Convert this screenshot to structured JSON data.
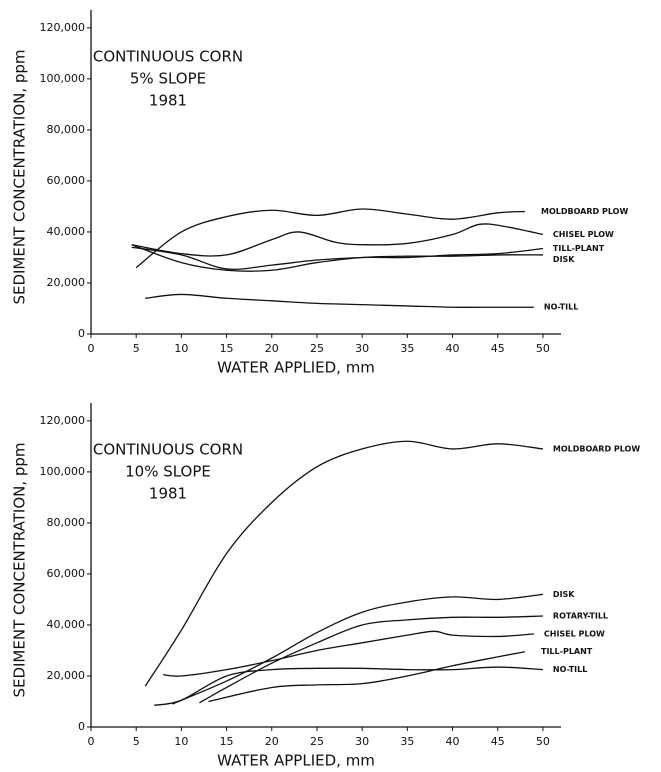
{
  "chart_data": [
    {
      "type": "line",
      "title_lines": [
        "CONTINUOUS CORN",
        "5% SLOPE",
        "1981"
      ],
      "x_label": "WATER APPLIED, mm",
      "y_label": "SEDIMENT CONCENTRATION, ppm",
      "xlim": [
        0,
        52
      ],
      "ylim": [
        0,
        127000
      ],
      "xticks": [
        0,
        5,
        10,
        15,
        20,
        25,
        30,
        35,
        40,
        45,
        50
      ],
      "yticks": [
        0,
        {
          "value": 20000,
          "label": "20,000"
        },
        {
          "value": 40000,
          "label": "40,000"
        },
        {
          "value": 60000,
          "label": "60,000"
        },
        {
          "value": 80000,
          "label": "80,000"
        },
        {
          "value": 100000,
          "label": "100,000"
        },
        {
          "value": 120000,
          "label": "120,000"
        }
      ],
      "series": [
        {
          "name": "MOLDBOARD PLOW",
          "color": "#111",
          "x": [
            5,
            10,
            15,
            20,
            25,
            30,
            35,
            40,
            45,
            48
          ],
          "values": [
            26000,
            40000,
            46000,
            48500,
            46500,
            49000,
            47000,
            45000,
            47500,
            48000
          ]
        },
        {
          "name": "CHISEL PLOW",
          "color": "#111",
          "x": [
            4.5,
            10,
            15,
            20,
            23,
            27,
            30,
            35,
            40,
            43,
            46,
            50
          ],
          "values": [
            35000,
            31500,
            31000,
            37000,
            40000,
            36000,
            35000,
            35500,
            39000,
            43000,
            42000,
            39000
          ]
        },
        {
          "name": "TILL-PLANT",
          "color": "#111",
          "x": [
            4.5,
            10,
            15,
            20,
            25,
            30,
            35,
            40,
            45,
            50
          ],
          "values": [
            34000,
            31000,
            25500,
            27000,
            29000,
            30000,
            30000,
            31000,
            31500,
            33500
          ]
        },
        {
          "name": "DISK",
          "color": "#111",
          "x": [
            4.5,
            10,
            15,
            20,
            25,
            30,
            35,
            40,
            45,
            50
          ],
          "values": [
            35000,
            28000,
            25000,
            25000,
            28000,
            30000,
            30500,
            30500,
            31000,
            31000
          ]
        },
        {
          "name": "NO-TILL",
          "color": "#111",
          "x": [
            6,
            10,
            15,
            20,
            25,
            30,
            35,
            40,
            45,
            49
          ],
          "values": [
            14000,
            15500,
            14000,
            13000,
            12000,
            11500,
            11000,
            10500,
            10500,
            10500
          ]
        }
      ]
    },
    {
      "type": "line",
      "title_lines": [
        "CONTINUOUS CORN",
        "10% SLOPE",
        "1981"
      ],
      "x_label": "WATER APPLIED, mm",
      "y_label": "SEDIMENT CONCENTRATION, ppm",
      "xlim": [
        0,
        52
      ],
      "ylim": [
        0,
        127000
      ],
      "xticks": [
        0,
        5,
        10,
        15,
        20,
        25,
        30,
        35,
        40,
        45,
        50
      ],
      "yticks": [
        0,
        {
          "value": 20000,
          "label": "20,000"
        },
        {
          "value": 40000,
          "label": "40,000"
        },
        {
          "value": 60000,
          "label": "60,000"
        },
        {
          "value": 80000,
          "label": "80,000"
        },
        {
          "value": 100000,
          "label": "100,000"
        },
        {
          "value": 120000,
          "label": "120,000"
        }
      ],
      "series": [
        {
          "name": "MOLDBOARD PLOW",
          "color": "#111",
          "x": [
            6,
            10,
            15,
            20,
            25,
            30,
            35,
            40,
            45,
            50
          ],
          "values": [
            16000,
            38000,
            68000,
            88000,
            102000,
            109000,
            112000,
            109000,
            111000,
            109000
          ]
        },
        {
          "name": "DISK",
          "color": "#111",
          "x": [
            9,
            15,
            20,
            25,
            30,
            35,
            40,
            45,
            50
          ],
          "values": [
            9000,
            18000,
            27000,
            37000,
            45000,
            49000,
            51000,
            50000,
            52000
          ]
        },
        {
          "name": "ROTARY-TILL",
          "color": "#111",
          "x": [
            12,
            15,
            20,
            25,
            30,
            35,
            40,
            45,
            50
          ],
          "values": [
            9500,
            15500,
            25000,
            33000,
            40000,
            42000,
            43000,
            43000,
            43500
          ]
        },
        {
          "name": "CHISEL PLOW",
          "color": "#111",
          "x": [
            8,
            10,
            15,
            20,
            25,
            30,
            35,
            38,
            40,
            45,
            49
          ],
          "values": [
            20500,
            20000,
            22500,
            26000,
            30000,
            33000,
            36000,
            37500,
            36000,
            35500,
            36500
          ]
        },
        {
          "name": "TILL-PLANT",
          "color": "#111",
          "x": [
            13,
            20,
            25,
            30,
            35,
            40,
            45,
            48
          ],
          "values": [
            10000,
            15500,
            16500,
            17000,
            20000,
            24000,
            27500,
            29500
          ]
        },
        {
          "name": "NO-TILL",
          "color": "#111",
          "x": [
            7,
            10,
            15,
            20,
            25,
            30,
            35,
            40,
            45,
            50
          ],
          "values": [
            8500,
            10500,
            20000,
            22500,
            23000,
            23000,
            22500,
            22500,
            23500,
            22500
          ]
        }
      ]
    }
  ]
}
